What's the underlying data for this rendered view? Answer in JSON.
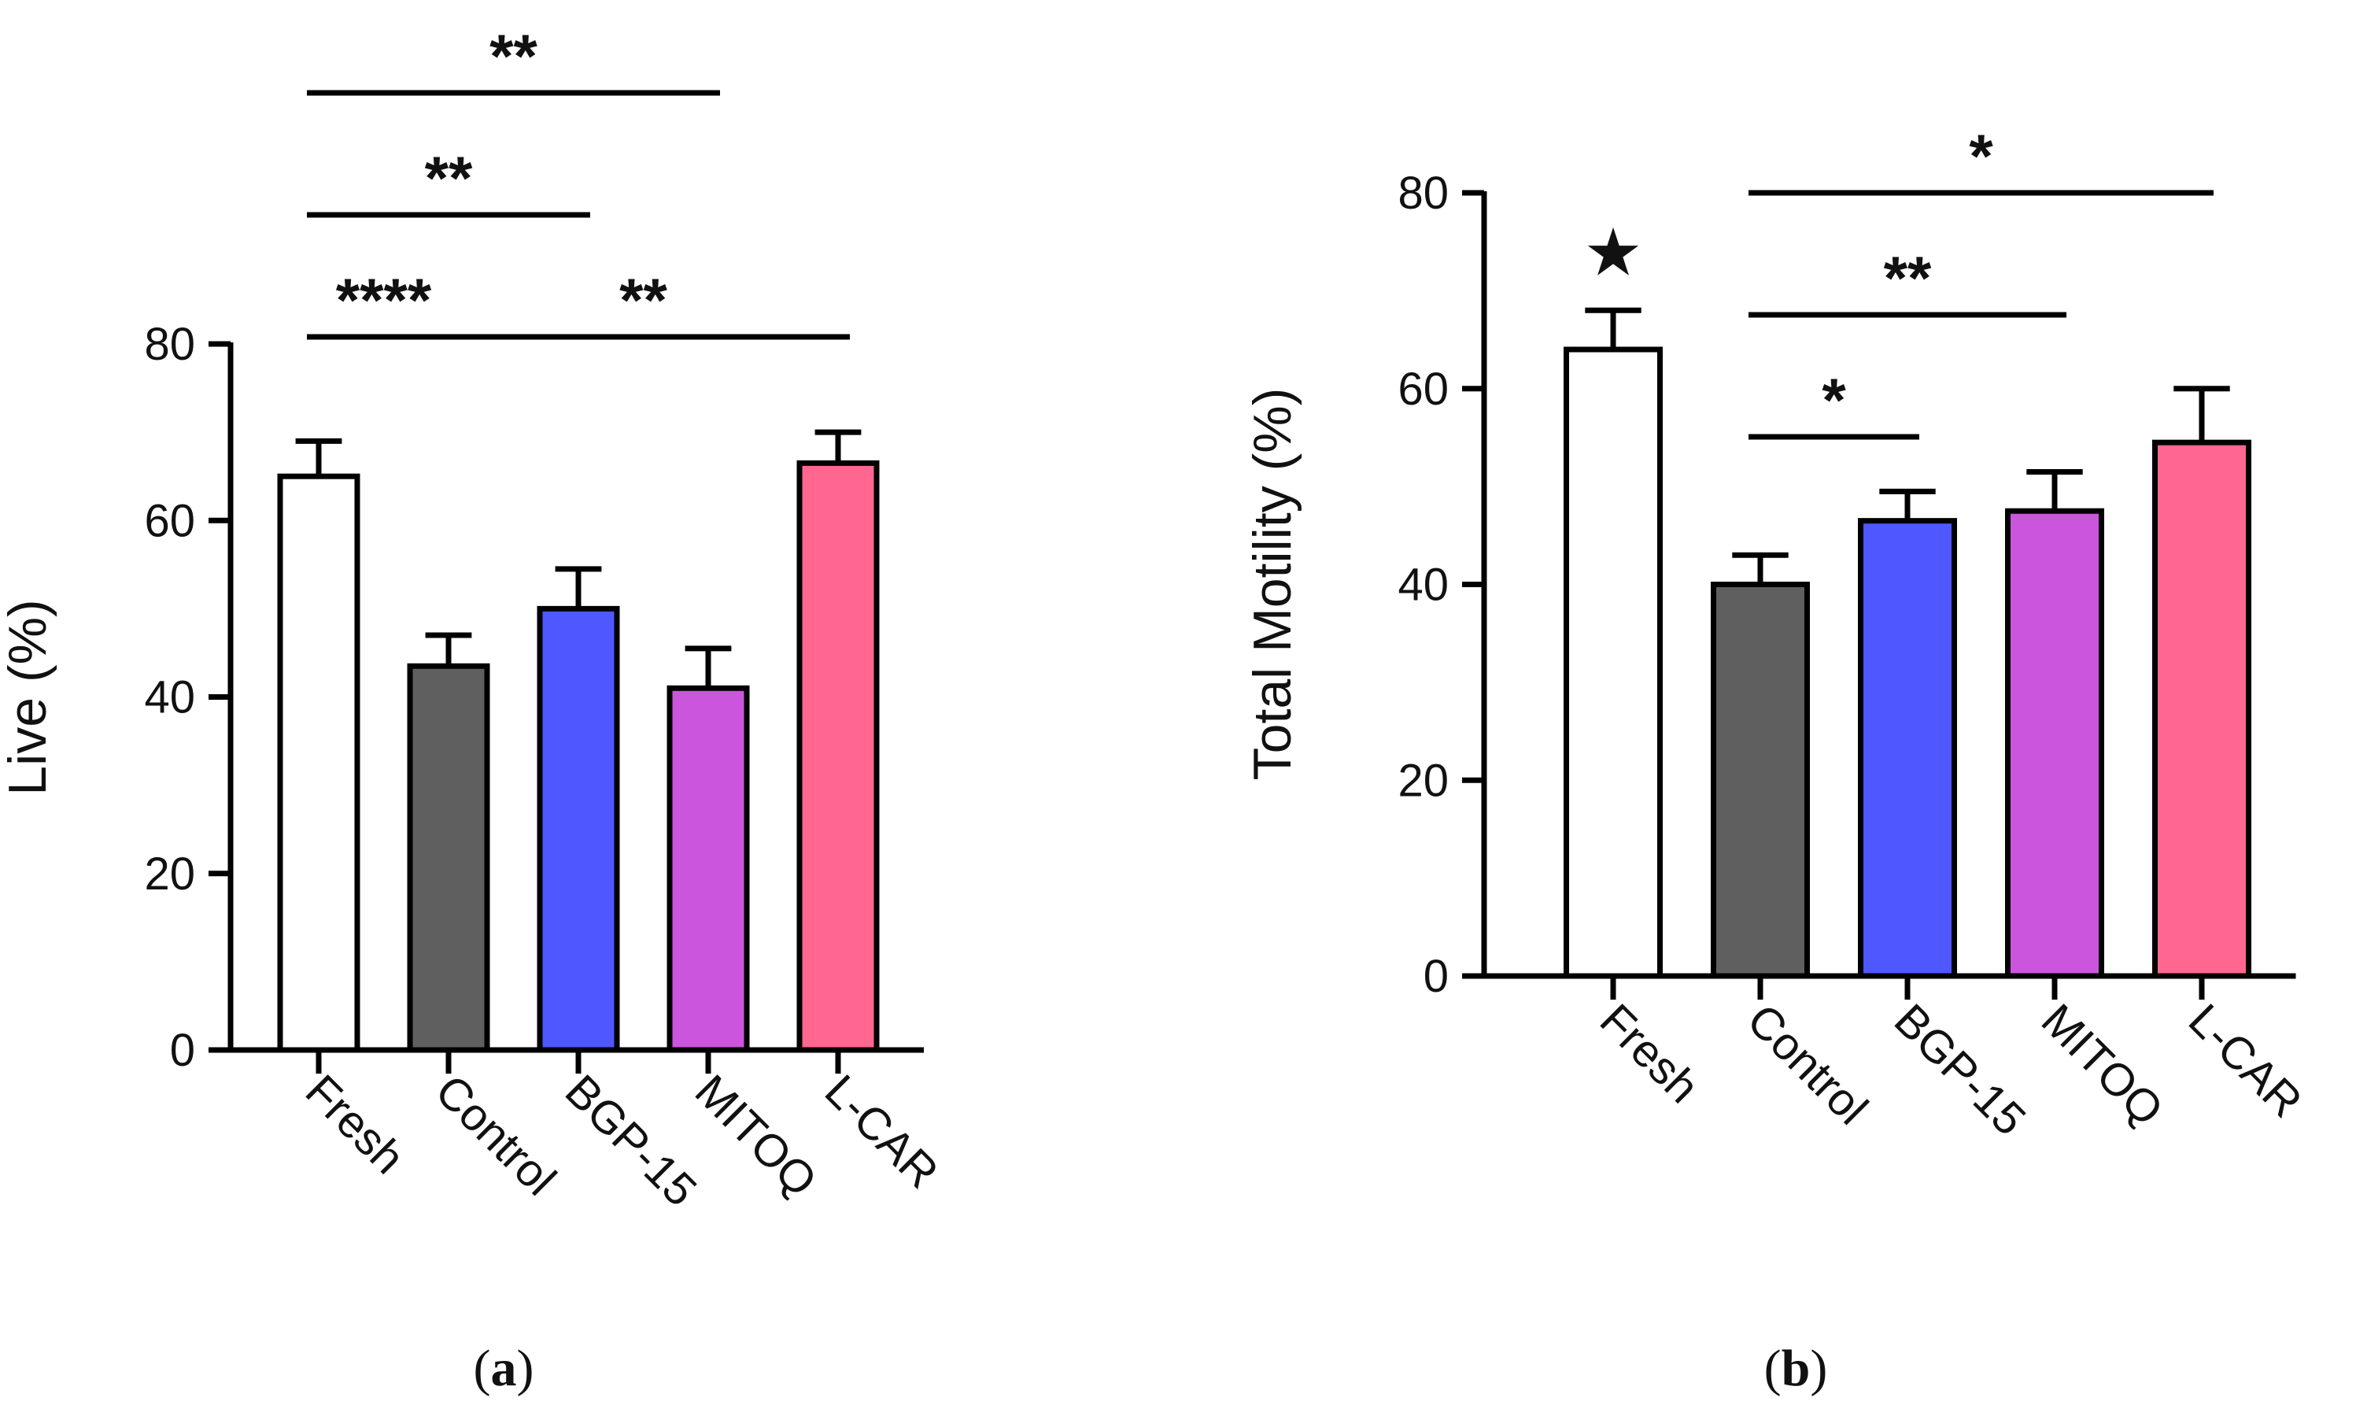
{
  "chart_data": [
    {
      "type": "bar",
      "panel": "a",
      "panel_label": "a",
      "ylabel": "Live (%)",
      "xlabel": "",
      "ylim": [
        0,
        80
      ],
      "yticks": [
        0,
        20,
        40,
        60,
        80
      ],
      "categories": [
        "Fresh",
        "Control",
        "BGP-15",
        "MITOQ",
        "L-CAR"
      ],
      "values": [
        65,
        43.5,
        50,
        41,
        66.5
      ],
      "errors": [
        4,
        3.5,
        4.5,
        4.5,
        3.5
      ],
      "colors": [
        "#ffffff",
        "#5f5f5f",
        "#4f57ff",
        "#cc55dd",
        "#ff6690"
      ],
      "significance": [
        {
          "from": "Fresh",
          "to": "Control",
          "label": "****",
          "level": 1
        },
        {
          "from": "Fresh",
          "to": "BGP-15",
          "label": "**",
          "level": 2
        },
        {
          "from": "Fresh",
          "to": "MITOQ",
          "label": "**",
          "level": 3
        },
        {
          "from": "Control",
          "to": "L-CAR",
          "label": "**",
          "level": 1
        }
      ],
      "annotations": []
    },
    {
      "type": "bar",
      "panel": "b",
      "panel_label": "b",
      "ylabel": "Total Motility (%)",
      "xlabel": "",
      "ylim": [
        0,
        80
      ],
      "yticks": [
        0,
        20,
        40,
        60,
        80
      ],
      "categories": [
        "Fresh",
        "Control",
        "BGP-15",
        "MITOQ",
        "L-CAR"
      ],
      "values": [
        64,
        40,
        46.5,
        47.5,
        54.5
      ],
      "errors": [
        4,
        3,
        3,
        4,
        5.5
      ],
      "colors": [
        "#ffffff",
        "#5f5f5f",
        "#4f57ff",
        "#cc55dd",
        "#ff6690"
      ],
      "significance": [
        {
          "from": "Control",
          "to": "BGP-15",
          "label": "*",
          "level": 1
        },
        {
          "from": "Control",
          "to": "MITOQ",
          "label": "**",
          "level": 2
        },
        {
          "from": "Control",
          "to": "L-CAR",
          "label": "*",
          "level": 3
        }
      ],
      "annotations": [
        {
          "on": "Fresh",
          "symbol": "★"
        }
      ]
    }
  ]
}
